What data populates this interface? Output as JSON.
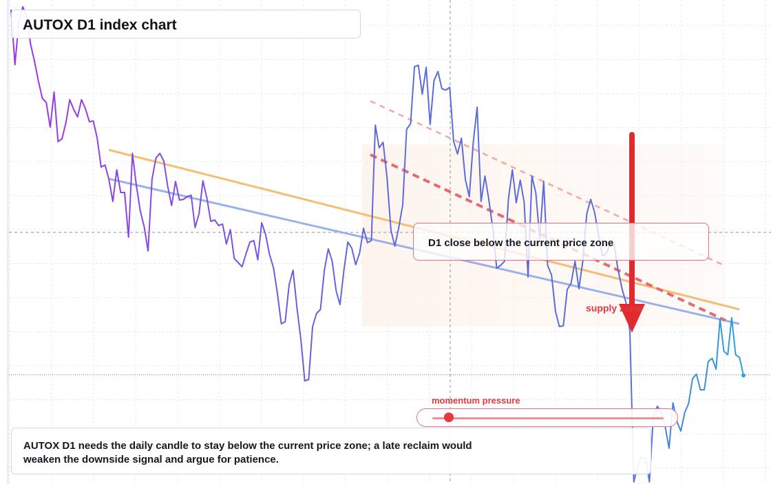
{
  "title": "AUTOX D1 index chart",
  "note": "AUTOX D1 needs the daily candle to stay below the current price zone; a late reclaim would weaken the downside signal and argue for patience.",
  "zone_label": "D1 close below the current price zone",
  "supply_label": "supply zone",
  "momentum": {
    "label": "momentum pressure",
    "level": 0.07
  },
  "colors": {
    "line_start": "#a033e8",
    "line_mid": "#5a6cdc",
    "line_end": "#2aa3e0",
    "orange_trend": "#f5b25a",
    "blue_trend": "#8ca7ec",
    "red_dashed": "#e56a6f",
    "pink_dashed": "#f1a6a8",
    "arrow": "#e02a2d",
    "zone_fill": "#fdf3ec"
  },
  "chart_data": {
    "type": "line",
    "title": "AUTOX D1 index chart",
    "xlabel": "",
    "ylabel": "",
    "grid": true,
    "ylim": [
      0,
      704
    ],
    "values": [
      690,
      610,
      672,
      694,
      680,
      640,
      615,
      586,
      561,
      555,
      519,
      570,
      498,
      502,
      525,
      559,
      545,
      534,
      559,
      546,
      527,
      528,
      503,
      461,
      464,
      443,
      411,
      457,
      424,
      424,
      359,
      481,
      434,
      397,
      374,
      339,
      443,
      474,
      481,
      470,
      433,
      405,
      440,
      413,
      414,
      418,
      420,
      373,
      393,
      441,
      416,
      382,
      384,
      376,
      378,
      349,
      370,
      328,
      322,
      316,
      335,
      352,
      354,
      326,
      380,
      363,
      334,
      315,
      278,
      233,
      236,
      290,
      311,
      256,
      211,
      150,
      152,
      229,
      248,
      254,
      311,
      342,
      324,
      281,
      261,
      311,
      352,
      343,
      319,
      336,
      372,
      351,
      354,
      522,
      489,
      497,
      446,
      369,
      346,
      373,
      406,
      516,
      524,
      607,
      609,
      567,
      606,
      523,
      587,
      600,
      575,
      573,
      577,
      498,
      480,
      503,
      443,
      418,
      496,
      548,
      411,
      448,
      413,
      371,
      314,
      318,
      324,
      415,
      457,
      409,
      442,
      410,
      301,
      448,
      423,
      357,
      440,
      318,
      304,
      251,
      229,
      230,
      283,
      292,
      324,
      284,
      325,
      393,
      414,
      395,
      362,
      332,
      335,
      350,
      347,
      311,
      284,
      264,
      222,
      3,
      27,
      39,
      37,
      3,
      99,
      113,
      106,
      84,
      52,
      118,
      91,
      77,
      104,
      117,
      153,
      160,
      137,
      137,
      178,
      183,
      167,
      240,
      193,
      188,
      242,
      188,
      184,
      158
    ]
  }
}
